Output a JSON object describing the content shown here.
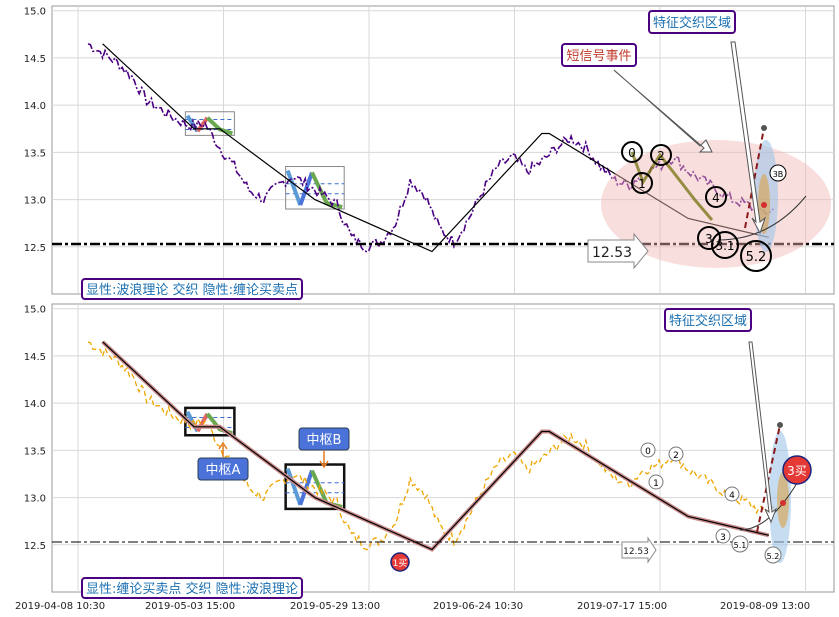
{
  "chart_data": [
    {
      "type": "line",
      "panel": "top",
      "ylim": [
        12.0,
        15.05
      ],
      "yticks": [
        "12.5",
        "13.0",
        "13.5",
        "14.0",
        "14.5",
        "15.0"
      ],
      "grid": true,
      "price_series": {
        "name": "",
        "color": "#4b0082",
        "style": "dash-dot",
        "x": [
          0.0,
          0.02,
          0.04,
          0.06,
          0.08,
          0.1,
          0.12,
          0.14,
          0.16,
          0.18,
          0.2,
          0.22,
          0.24,
          0.26,
          0.28,
          0.3,
          0.32,
          0.34,
          0.36,
          0.38,
          0.4,
          0.42,
          0.44,
          0.46,
          0.48,
          0.5,
          0.52,
          0.54,
          0.56,
          0.58,
          0.6,
          0.62,
          0.64,
          0.66,
          0.68,
          0.7,
          0.72,
          0.74,
          0.76,
          0.78,
          0.8,
          0.82,
          0.84,
          0.86,
          0.88,
          0.9,
          0.92,
          0.94
        ],
        "y": [
          14.65,
          14.55,
          14.45,
          14.3,
          14.05,
          13.95,
          13.85,
          13.78,
          13.8,
          13.55,
          13.35,
          13.1,
          13.0,
          13.15,
          13.25,
          13.15,
          13.05,
          12.95,
          12.6,
          12.5,
          12.55,
          12.75,
          13.2,
          13.05,
          12.7,
          12.55,
          12.8,
          13.1,
          13.35,
          13.45,
          13.3,
          13.4,
          13.55,
          13.65,
          13.55,
          13.35,
          13.2,
          13.15,
          13.3,
          13.35,
          13.45,
          13.3,
          13.2,
          13.1,
          13.0,
          12.95,
          12.85,
          12.9
        ]
      },
      "trend_line": {
        "color": "#000000",
        "x": [
          0.02,
          0.145,
          0.18,
          0.31,
          0.47,
          0.62,
          0.63,
          0.82,
          0.93
        ],
        "y": [
          14.65,
          13.75,
          13.75,
          13.0,
          12.45,
          13.7,
          13.7,
          12.8,
          12.6
        ]
      },
      "hline": {
        "value": 12.53,
        "label": "12.53"
      },
      "zones": [
        {
          "x0": 0.133,
          "x1": 0.2,
          "y0": 13.68,
          "y1": 13.93
        },
        {
          "x0": 0.27,
          "x1": 0.35,
          "y0": 12.9,
          "y1": 13.35
        }
      ],
      "circle_labels": [
        "0",
        "1",
        "2",
        "3",
        "4",
        "3.1",
        "5.2"
      ],
      "small_labels": [
        "3B"
      ],
      "annotations": [
        {
          "text": "特征交织区域",
          "color": "#1a6fb0"
        },
        {
          "text": "短信号事件",
          "color": "#c0392b"
        }
      ],
      "legend_text": "显性:波浪理论 交织 隐性:缠论买卖点"
    },
    {
      "type": "line",
      "panel": "bottom",
      "ylim": [
        12.0,
        15.05
      ],
      "yticks": [
        "12.5",
        "13.0",
        "13.5",
        "14.0",
        "14.5",
        "15.0"
      ],
      "xticks": [
        "2019-04-08 10:30",
        "2019-05-03 15:00",
        "2019-05-29 13:00",
        "2019-06-24 10:30",
        "2019-07-17 15:00",
        "2019-08-09 13:00"
      ],
      "grid": true,
      "price_series": {
        "name": "",
        "color": "#f0a500",
        "style": "dashed",
        "x": [
          0.0,
          0.02,
          0.04,
          0.06,
          0.08,
          0.1,
          0.12,
          0.14,
          0.16,
          0.18,
          0.2,
          0.22,
          0.24,
          0.26,
          0.28,
          0.3,
          0.32,
          0.34,
          0.36,
          0.38,
          0.4,
          0.42,
          0.44,
          0.46,
          0.48,
          0.5,
          0.52,
          0.54,
          0.56,
          0.58,
          0.6,
          0.62,
          0.64,
          0.66,
          0.68,
          0.7,
          0.72,
          0.74,
          0.76,
          0.78,
          0.8,
          0.82,
          0.84,
          0.86,
          0.88,
          0.9,
          0.92,
          0.94
        ],
        "y": [
          14.65,
          14.55,
          14.45,
          14.3,
          14.05,
          13.95,
          13.85,
          13.78,
          13.8,
          13.55,
          13.35,
          13.1,
          13.0,
          13.15,
          13.25,
          13.15,
          13.05,
          12.95,
          12.6,
          12.5,
          12.55,
          12.75,
          13.2,
          13.05,
          12.7,
          12.55,
          12.8,
          13.1,
          13.35,
          13.45,
          13.3,
          13.4,
          13.55,
          13.65,
          13.55,
          13.35,
          13.2,
          13.15,
          13.3,
          13.35,
          13.45,
          13.3,
          13.2,
          13.1,
          13.0,
          12.95,
          12.85,
          12.9
        ]
      },
      "trend_line": {
        "color": "#000000",
        "x": [
          0.02,
          0.145,
          0.18,
          0.31,
          0.47,
          0.62,
          0.63,
          0.82,
          0.93
        ],
        "y": [
          14.65,
          13.75,
          13.75,
          13.0,
          12.45,
          13.7,
          13.7,
          12.8,
          12.6
        ]
      },
      "hline": {
        "value": 12.53,
        "label": "12.53"
      },
      "zones": [
        {
          "name": "中枢A",
          "x0": 0.133,
          "x1": 0.2,
          "y0": 13.66,
          "y1": 13.95
        },
        {
          "name": "中枢B",
          "x0": 0.27,
          "x1": 0.35,
          "y0": 12.88,
          "y1": 13.35
        }
      ],
      "circle_labels": [
        "0",
        "1",
        "2",
        "3",
        "4",
        "5.1",
        "5.2"
      ],
      "buy_labels": [
        "1买",
        "3买"
      ],
      "annotations": [
        {
          "text": "特征交织区域",
          "color": "#1a6fb0"
        },
        {
          "text": "中枢A",
          "color": "#ffffff"
        },
        {
          "text": "中枢B",
          "color": "#ffffff"
        }
      ],
      "legend_text": "显性:缠论买卖点 交织 隐性:波浪理论"
    }
  ]
}
